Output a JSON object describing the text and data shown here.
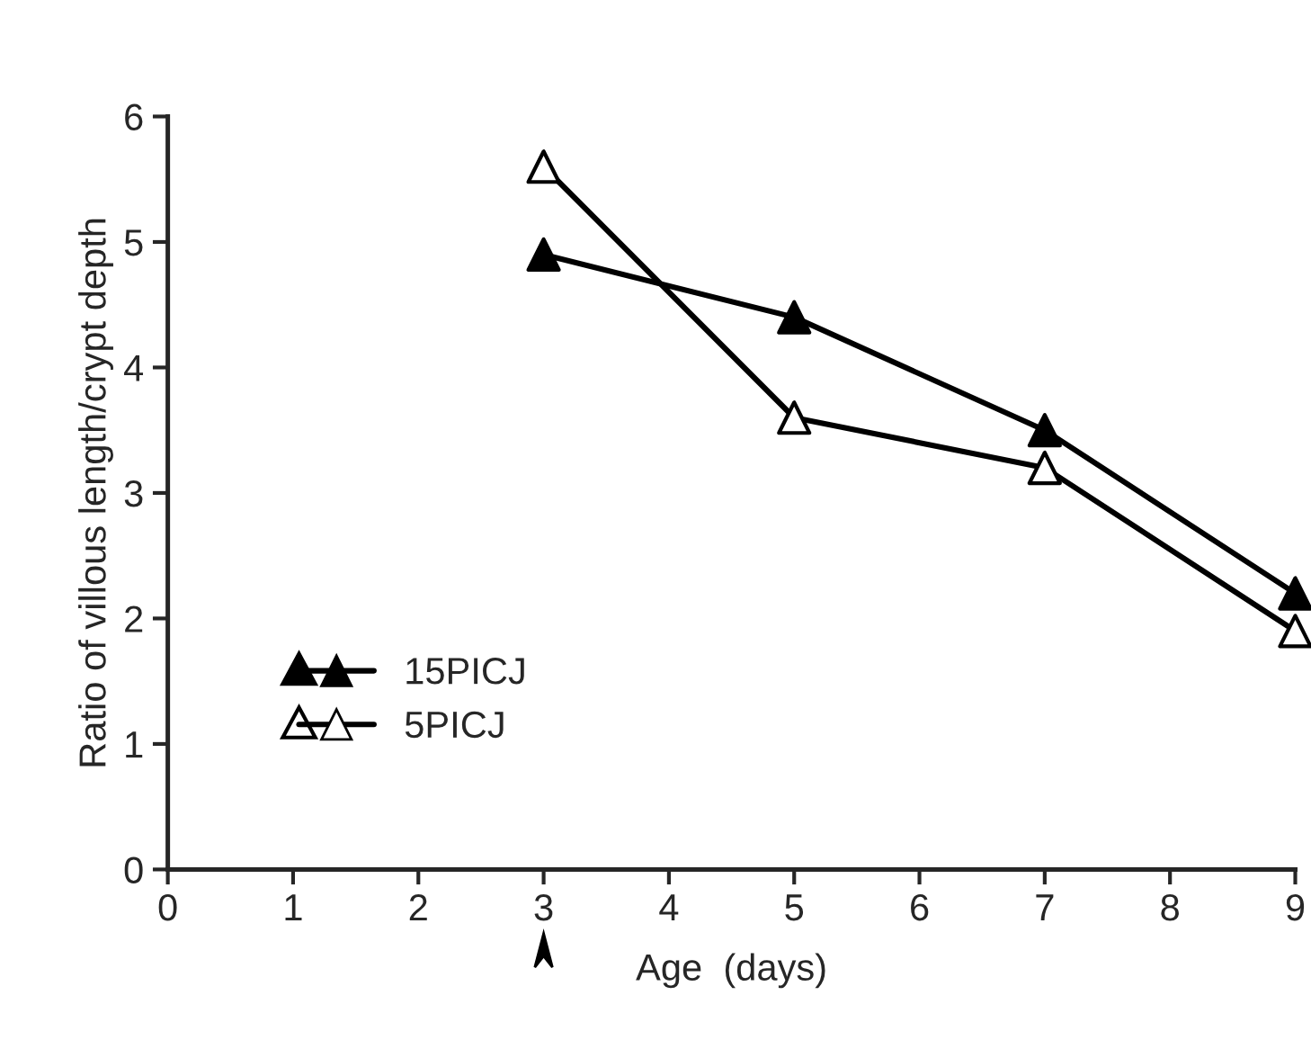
{
  "chart_data": {
    "type": "line",
    "xlabel": "Age  (days)",
    "ylabel": "Ratio of villous length/crypt depth",
    "x": [
      3,
      5,
      7,
      9
    ],
    "series": [
      {
        "name": "15PICJ",
        "color": "#000000",
        "values": [
          4.9,
          4.4,
          3.5,
          2.2
        ]
      },
      {
        "name": "5PICJ",
        "color": "#000000",
        "values": [
          5.6,
          3.6,
          3.2,
          1.9
        ]
      }
    ],
    "xlim": [
      0,
      9
    ],
    "xticks": [
      0,
      1,
      2,
      3,
      4,
      5,
      6,
      7,
      8,
      9
    ],
    "ylim": [
      0,
      6
    ],
    "yticks": [
      0,
      1,
      2,
      3,
      4,
      5,
      6
    ],
    "grid": false,
    "legend": "lower left",
    "marker": "triangle",
    "line_style": "solid"
  }
}
